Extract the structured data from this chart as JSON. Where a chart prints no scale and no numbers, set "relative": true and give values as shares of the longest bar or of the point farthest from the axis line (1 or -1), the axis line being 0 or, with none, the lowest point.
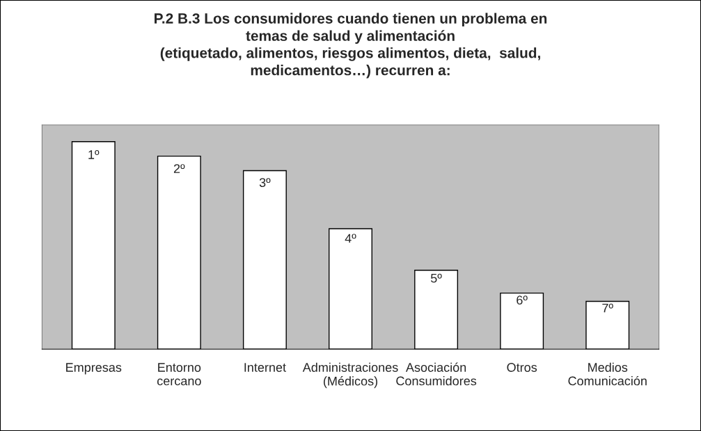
{
  "chart_data": {
    "type": "bar",
    "title": "P.2 B.3 Los consumidores cuando tienen un problema en\ntemas de salud y alimentación\n(etiquetado, alimentos, riesgos alimentos, dieta,  salud,\nmedicamentos…) recurren a:",
    "categories": [
      "Empresas",
      "Entorno\ncercano",
      "Internet",
      "Administraciones\n(Médicos)",
      "Asociación\nConsumidores",
      "Otros",
      "Medios\nComunicación"
    ],
    "values": [
      1,
      0.93,
      0.86,
      0.58,
      0.38,
      0.27,
      0.23
    ],
    "annotations": [
      {
        "text": "1º",
        "x": "Empresas",
        "y": 1
      },
      {
        "text": "2º",
        "x": "Entorno\ncercano",
        "y": 0.93
      },
      {
        "text": "3º",
        "x": "Internet",
        "y": 0.86
      },
      {
        "text": "4º",
        "x": "Administraciones\n(Médicos)",
        "y": 0.58
      },
      {
        "text": "5º",
        "x": "Asociación\nConsumidores",
        "y": 0.38
      },
      {
        "text": "6º",
        "x": "Otros",
        "y": 0.27
      },
      {
        "text": "7º",
        "x": "Medios\nComunicación",
        "y": 0.23
      }
    ],
    "color": "#ffffff",
    "relative": true,
    "grid": false
  }
}
